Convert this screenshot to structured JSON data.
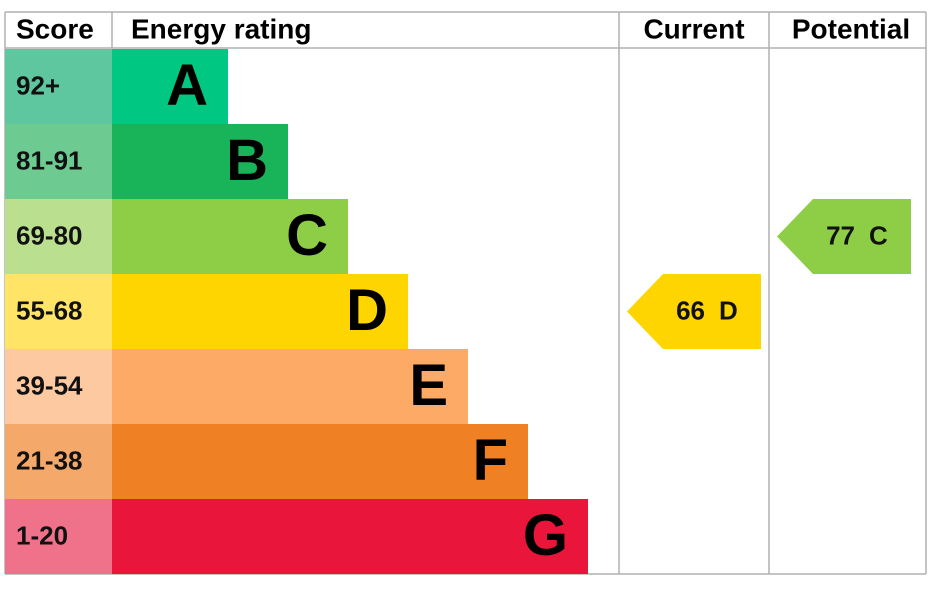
{
  "header": {
    "score": "Score",
    "rating": "Energy rating",
    "current": "Current",
    "potential": "Potential"
  },
  "bands": [
    {
      "score": "92+",
      "letter": "A",
      "color": "#00c781",
      "light": "#5fc7a0"
    },
    {
      "score": "81-91",
      "letter": "B",
      "color": "#19b459",
      "light": "#6dca91"
    },
    {
      "score": "69-80",
      "letter": "C",
      "color": "#8dce46",
      "light": "#badf8f"
    },
    {
      "score": "55-68",
      "letter": "D",
      "color": "#ffd500",
      "light": "#ffe466"
    },
    {
      "score": "39-54",
      "letter": "E",
      "color": "#fcaa65",
      "light": "#fdc9a1"
    },
    {
      "score": "21-38",
      "letter": "F",
      "color": "#ef8023",
      "light": "#f4a86a"
    },
    {
      "score": "1-20",
      "letter": "G",
      "color": "#e9153b",
      "light": "#f0728a"
    }
  ],
  "current": {
    "value": "66",
    "letter": "D"
  },
  "potential": {
    "value": "77",
    "letter": "C"
  }
}
